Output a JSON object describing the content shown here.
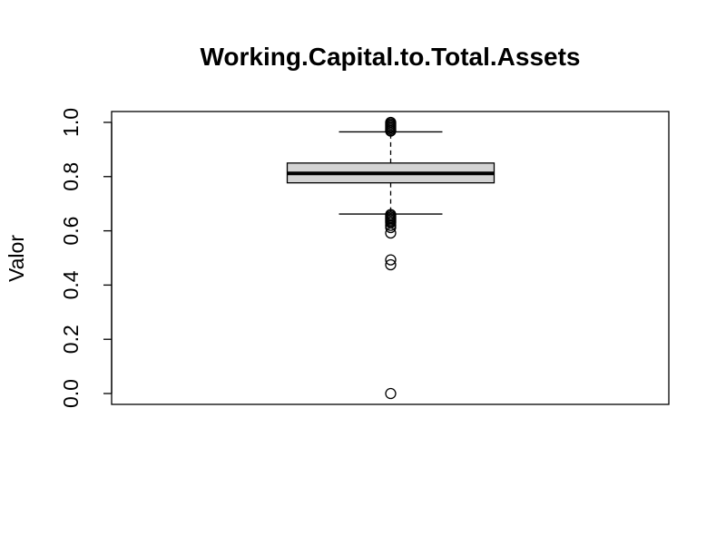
{
  "chart_data": {
    "type": "boxplot",
    "title": "Working.Capital.to.Total.Assets",
    "xlabel": "",
    "ylabel": "Valor",
    "ylim": [
      -0.04,
      1.04
    ],
    "yticks": [
      0.0,
      0.2,
      0.4,
      0.6,
      0.8,
      1.0
    ],
    "ytick_labels": [
      "0.0",
      "0.2",
      "0.4",
      "0.6",
      "0.8",
      "1.0"
    ],
    "grid": false,
    "box": {
      "q1": 0.777,
      "median": 0.812,
      "q3": 0.85,
      "whisker_low": 0.662,
      "whisker_high": 0.965
    },
    "outliers": [
      1.0,
      0.995,
      0.99,
      0.985,
      0.98,
      0.975,
      0.97,
      0.968,
      0.66,
      0.655,
      0.65,
      0.645,
      0.64,
      0.635,
      0.63,
      0.62,
      0.612,
      0.592,
      0.493,
      0.475,
      0.0
    ],
    "colors": {
      "box_fill": "#d3d3d3",
      "stroke": "#000000"
    }
  }
}
